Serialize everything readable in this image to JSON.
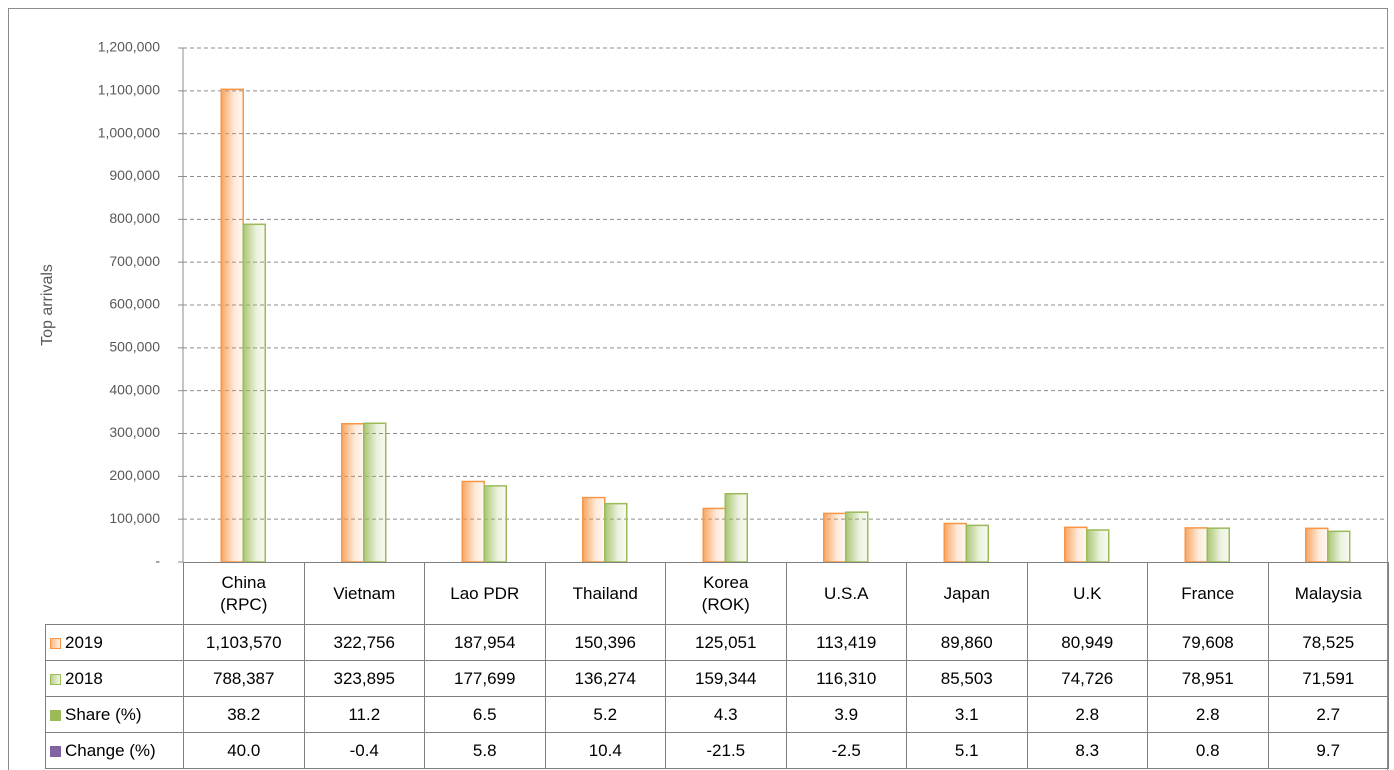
{
  "chart_data": {
    "type": "bar",
    "y_label": "Top arrivals",
    "categories": [
      "China (RPC)",
      "Vietnam",
      "Lao PDR",
      "Thailand",
      "Korea (ROK)",
      "U.S.A",
      "Japan",
      "U.K",
      "France",
      "Malaysia"
    ],
    "series": [
      {
        "name": "2019",
        "color": "#f79646",
        "values": [
          1103570,
          322756,
          187954,
          150396,
          125051,
          113419,
          89860,
          80949,
          79608,
          78525
        ],
        "value_labels": [
          "1,103,570",
          "322,756",
          "187,954",
          "150,396",
          "125,051",
          "113,419",
          "89,860",
          "80,949",
          "79,608",
          "78,525"
        ]
      },
      {
        "name": "2018",
        "color": "#9bbb59",
        "values": [
          788387,
          323895,
          177699,
          136274,
          159344,
          116310,
          85503,
          74726,
          78951,
          71591
        ],
        "value_labels": [
          "788,387",
          "323,895",
          "177,699",
          "136,274",
          "159,344",
          "116,310",
          "85,503",
          "74,726",
          "78,951",
          "71,591"
        ]
      }
    ],
    "table_rows": [
      {
        "name": "Share (%)",
        "color": "#9bbb59",
        "values": [
          38.2,
          11.2,
          6.5,
          5.2,
          4.3,
          3.9,
          3.1,
          2.8,
          2.8,
          2.7
        ]
      },
      {
        "name": "Change (%)",
        "color": "#8064a2",
        "values": [
          40.0,
          -0.4,
          5.8,
          10.4,
          -21.5,
          -2.5,
          5.1,
          8.3,
          0.8,
          9.7
        ],
        "value_labels": [
          "40.0",
          "-0.4",
          "5.8",
          "10.4",
          "-21.5",
          "-2.5",
          "5.1",
          "8.3",
          "0.8",
          "9.7"
        ]
      }
    ],
    "ylim": [
      0,
      1200000
    ],
    "yticks": [
      {
        "value": 0,
        "label": "-"
      },
      {
        "value": 100000,
        "label": "100,000"
      },
      {
        "value": 200000,
        "label": "200,000"
      },
      {
        "value": 300000,
        "label": "300,000"
      },
      {
        "value": 400000,
        "label": "400,000"
      },
      {
        "value": 500000,
        "label": "500,000"
      },
      {
        "value": 600000,
        "label": "600,000"
      },
      {
        "value": 700000,
        "label": "700,000"
      },
      {
        "value": 800000,
        "label": "800,000"
      },
      {
        "value": 900000,
        "label": "900,000"
      },
      {
        "value": 1000000,
        "label": "1,000,000"
      },
      {
        "value": 1100000,
        "label": "1,100,000"
      },
      {
        "value": 1200000,
        "label": "1,200,000"
      }
    ],
    "grid": true
  }
}
